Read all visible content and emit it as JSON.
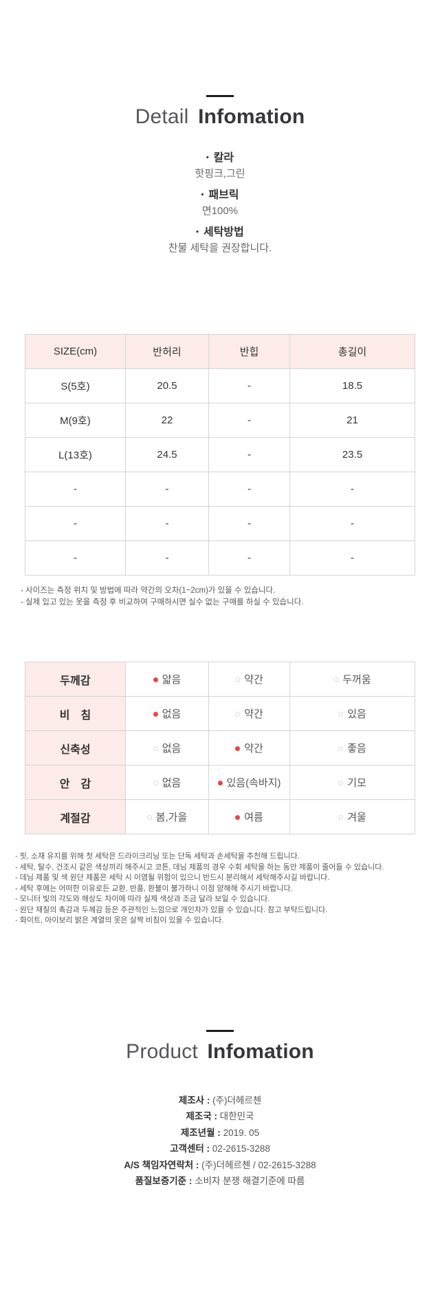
{
  "colors": {
    "accent_pink_bg": "#fcebe9",
    "selected_dot_red": "#ee4343",
    "table_border": "#d4d4d4",
    "title_dark": "#37373b",
    "body_text": "#555555"
  },
  "detail_section": {
    "title_light": "Detail",
    "title_bold": "Infomation",
    "bullet_icon": "•",
    "attributes": [
      {
        "label": "칼라",
        "value": "핫핑크,그린"
      },
      {
        "label": "패브릭",
        "value": "면100%"
      },
      {
        "label": "세탁방법",
        "value": "찬물 세탁을 권장합니다."
      }
    ]
  },
  "size_table": {
    "headers": [
      "SIZE(cm)",
      "반허리",
      "반힙",
      "총길이"
    ],
    "rows": [
      [
        "S(5호)",
        "20.5",
        "-",
        "18.5"
      ],
      [
        "M(9호)",
        "22",
        "-",
        "21"
      ],
      [
        "L(13호)",
        "24.5",
        "-",
        "23.5"
      ],
      [
        "-",
        "-",
        "-",
        "-"
      ],
      [
        "-",
        "-",
        "-",
        "-"
      ],
      [
        "-",
        "-",
        "-",
        "-"
      ]
    ],
    "notes": [
      "- 사이즈는 측정 위치 및 방법에 따라 약간의 오차(1~2cm)가 있을 수 있습니다.",
      "- 실제 입고 있는 옷을 측정 후 비교하여 구매하시면 실수 없는 구매를 하실 수 있습니다."
    ]
  },
  "feature_table": {
    "rows": [
      {
        "label": "두께감",
        "options": [
          "얇음",
          "약간",
          "두꺼움"
        ],
        "selected": 0
      },
      {
        "label": "비　침",
        "options": [
          "없음",
          "약간",
          "있음"
        ],
        "selected": 0
      },
      {
        "label": "신축성",
        "options": [
          "없음",
          "약간",
          "좋음"
        ],
        "selected": 1
      },
      {
        "label": "안　감",
        "options": [
          "없음",
          "있음(속바지)",
          "기모"
        ],
        "selected": 1
      },
      {
        "label": "계절감",
        "options": [
          "봄,가을",
          "여름",
          "겨울"
        ],
        "selected": 1
      }
    ]
  },
  "care_notes": [
    "- 핏, 소재 유지를 위해 첫 세탁은 드라이크리닝 또는 단독 세탁과 손세탁을 추천해 드립니다.",
    "- 세탁, 탈수, 건조시 같은 색상끼리 해주시고 코튼, 데님 제품의 경우 수회 세탁을 하는 동안 제품이 줄어들 수 있습니다.",
    "- 데님 제품 및 색 원단 제품은 세탁 시 이염될 위험이 있으니 반드시 분리해서 세탁해주시길 바랍니다.",
    "- 세탁 후에는 어떠한 이유로든 교환, 반품, 환불이 불가하니 이점 양해해 주시기 바랍니다.",
    "- 모니터 빛의 각도와 해상도 차이에 따라 실제 색상과 조금 달라 보일 수 있습니다.",
    "- 원단 재질의 촉감과 두께감 등은 주관적인 느낌으로 개인차가 있을 수 있습니다. 참고 부탁드립니다.",
    "- 화이트, 아이보리 밝은 계열의 옷은 살짝 비침이 있을 수 있습니다."
  ],
  "product_section": {
    "title_light": "Product",
    "title_bold": "Infomation",
    "separator": " : ",
    "fields": [
      {
        "label": "제조사",
        "value": "(주)더헤르첸"
      },
      {
        "label": "제조국",
        "value": "대한민국"
      },
      {
        "label": "제조년월",
        "value": "2019. 05"
      },
      {
        "label": "고객센터",
        "value": "02-2615-3288"
      },
      {
        "label": "A/S 책임자연락처",
        "value": "(주)더헤르첸 / 02-2615-3288"
      },
      {
        "label": "품질보증기준",
        "value": "소비자 분쟁 해결기준에 따름"
      }
    ]
  }
}
